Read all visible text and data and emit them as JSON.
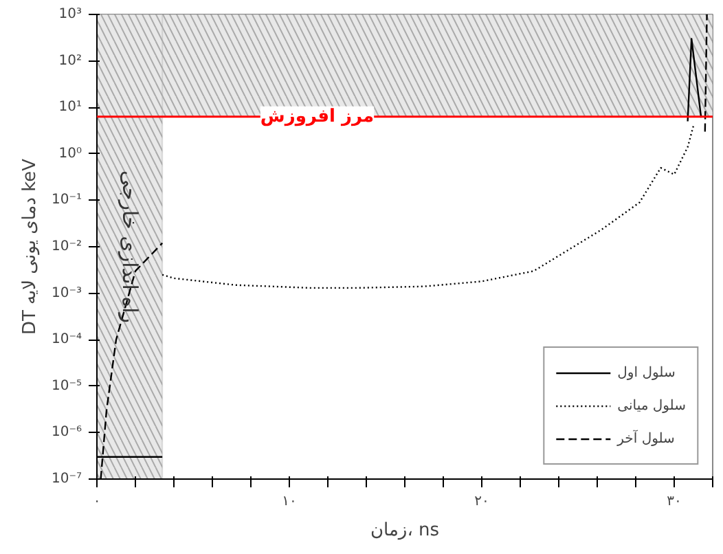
{
  "chart_data": {
    "type": "line",
    "xlabel": "زمان، ns",
    "ylabel": "DT دمای یونی لایه keV",
    "log": "y",
    "xlim": [
      0,
      32
    ],
    "ylim": [
      1e-07,
      1000
    ],
    "xticks": [
      {
        "value": 0,
        "label": "۰"
      },
      {
        "value": 2,
        "label": null
      },
      {
        "value": 4,
        "label": null
      },
      {
        "value": 6,
        "label": null
      },
      {
        "value": 8,
        "label": null
      },
      {
        "value": 10,
        "label": "۱۰"
      },
      {
        "value": 12,
        "label": null
      },
      {
        "value": 14,
        "label": null
      },
      {
        "value": 16,
        "label": null
      },
      {
        "value": 18,
        "label": null
      },
      {
        "value": 20,
        "label": "۲۰"
      },
      {
        "value": 22,
        "label": null
      },
      {
        "value": 24,
        "label": null
      },
      {
        "value": 26,
        "label": null
      },
      {
        "value": 28,
        "label": null
      },
      {
        "value": 30,
        "label": "۳۰"
      },
      {
        "value": 32,
        "label": null
      }
    ],
    "yticks": [
      {
        "value": 1e-07,
        "label": "10⁻⁷"
      },
      {
        "value": 1e-06,
        "label": "10⁻⁶"
      },
      {
        "value": 1e-05,
        "label": "10⁻⁵"
      },
      {
        "value": 0.0001,
        "label": "10⁻⁴"
      },
      {
        "value": 0.001,
        "label": "10⁻³"
      },
      {
        "value": 0.01,
        "label": "10⁻²"
      },
      {
        "value": 0.1,
        "label": "10⁻¹"
      },
      {
        "value": 1,
        "label": "10⁰"
      },
      {
        "value": 10,
        "label": "10¹"
      },
      {
        "value": 100,
        "label": "10²"
      },
      {
        "value": 1000,
        "label": "10³"
      }
    ],
    "grid": false,
    "legend": "bottom right",
    "series": [
      {
        "name": "سلول اول",
        "color": "#000000",
        "line_style": "solid",
        "x": [
          0,
          3.4,
          20,
          30.7,
          30.9,
          31.4
        ],
        "values": [
          3e-07,
          3e-07,
          null,
          5,
          300,
          6
        ]
      },
      {
        "name": "سلول میانی",
        "color": "#000000",
        "line_style": "dotted",
        "x": [
          3.4,
          4.0,
          7.2,
          11.1,
          13.5,
          17,
          20,
          22.7,
          26.2,
          28.2,
          29.3,
          30.0,
          30.7,
          31.0
        ],
        "values": [
          0.0025,
          0.0021,
          0.0015,
          0.0013,
          0.0013,
          0.0014,
          0.0018,
          0.003,
          0.023,
          0.09,
          0.5,
          0.36,
          1.4,
          4
        ]
      },
      {
        "name": "سلول آخر",
        "color": "#000000",
        "line_style": "dashed",
        "x": [
          0.2,
          0.5,
          1.0,
          2.0,
          3.4,
          20,
          31.6,
          31.7
        ],
        "values": [
          1e-07,
          3e-06,
          0.0001,
          0.003,
          0.012,
          null,
          3,
          1000
        ]
      }
    ],
    "ref_lines": [
      {
        "axis": "y",
        "value": 6.3,
        "label": "مرز افروزش",
        "color": "#ff0000"
      }
    ],
    "bands": [
      {
        "axis": "y",
        "from": 6.3,
        "to": 1000,
        "label": null,
        "color": "#e8e8e8"
      },
      {
        "axis": "x",
        "from": 0,
        "to": 3.4,
        "label": "راه اندازی خارجی",
        "color": "#e8e8e8"
      }
    ]
  }
}
